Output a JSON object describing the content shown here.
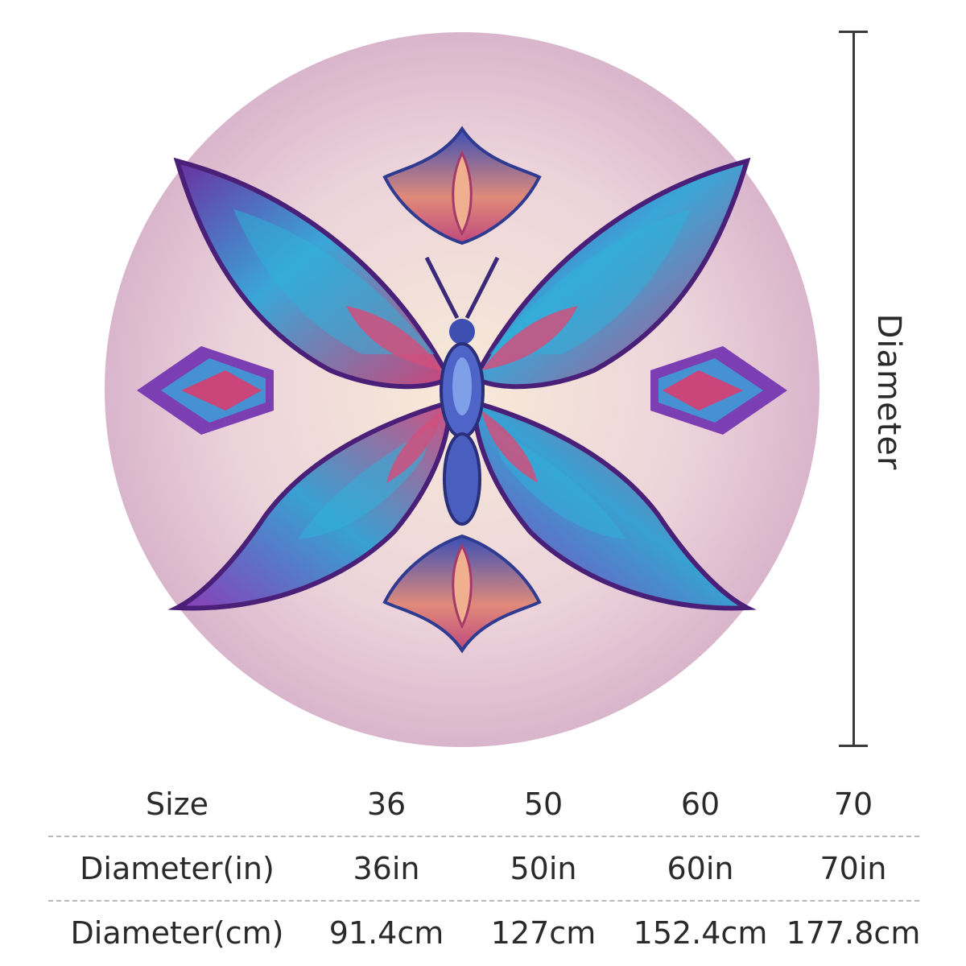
{
  "product": {
    "image_icon": "butterfly-mandala-round-rug",
    "colors": {
      "rug_base": "#e9cfdc",
      "wing_blue": "#3aa6d8",
      "wing_purple": "#7b3fb3",
      "accent_pink": "#c9457a"
    }
  },
  "dimension_label": "Diameter",
  "size_table": {
    "rows": [
      {
        "header": "Size",
        "values": [
          "36",
          "50",
          "60",
          "70"
        ]
      },
      {
        "header": "Diameter(in)",
        "values": [
          "36in",
          "50in",
          "60in",
          "70in"
        ]
      },
      {
        "header": "Diameter(cm)",
        "values": [
          "91.4cm",
          "127cm",
          "152.4cm",
          "177.8cm"
        ]
      }
    ]
  }
}
